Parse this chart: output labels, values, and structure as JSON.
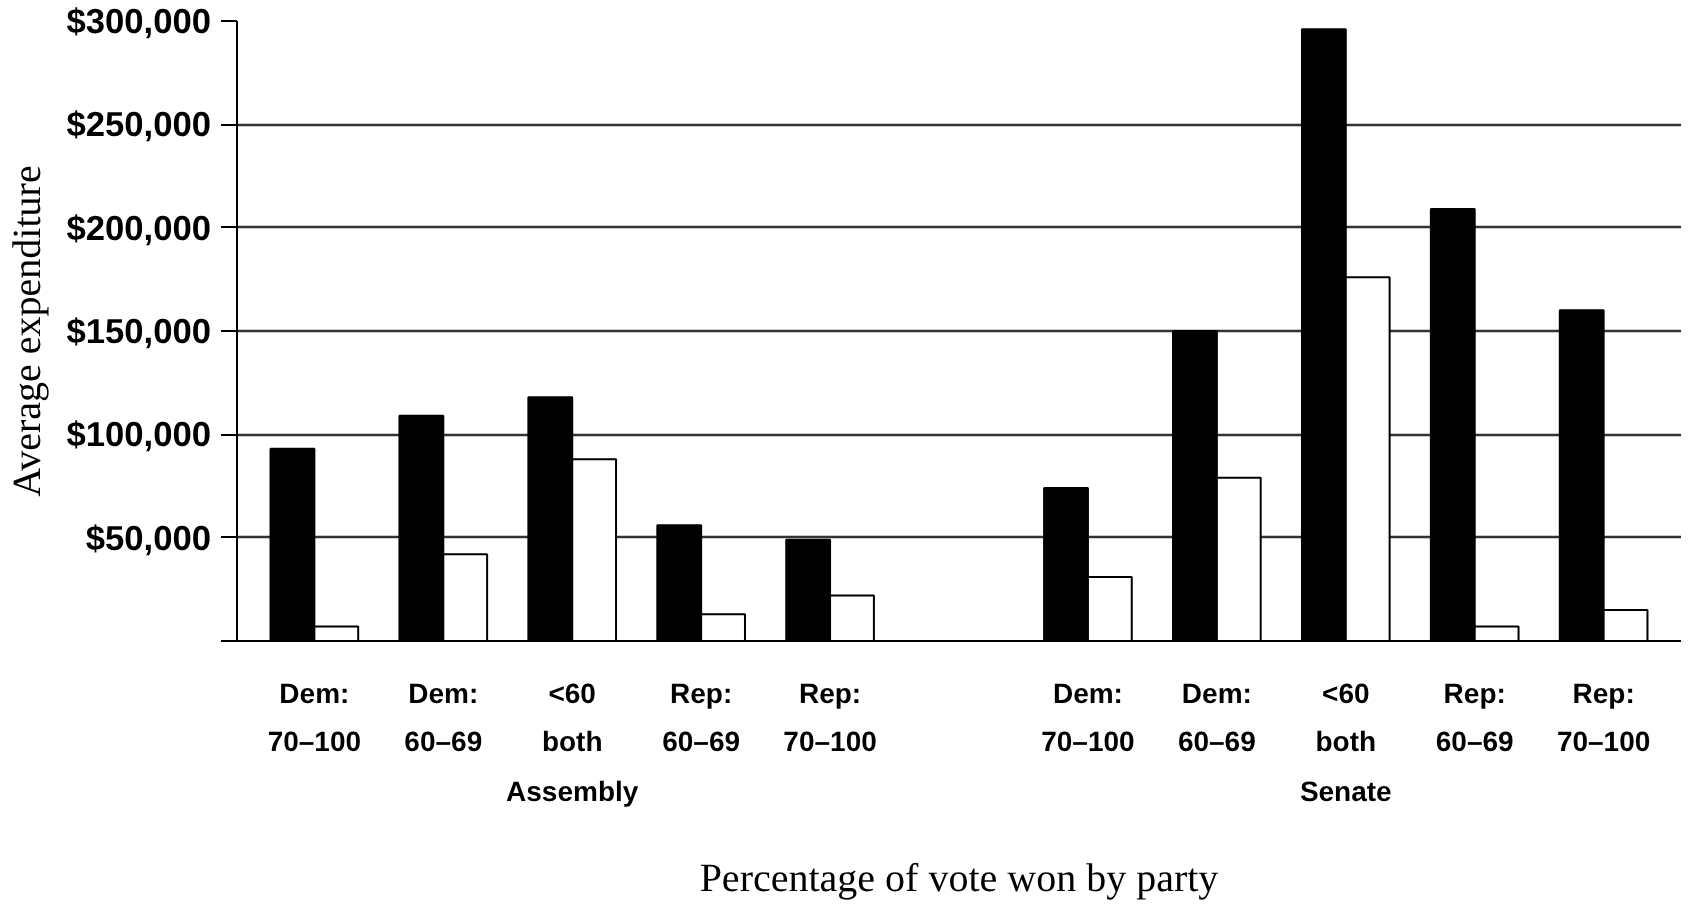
{
  "chart_data": {
    "type": "bar",
    "xlabel": "Percentage of vote won by party",
    "ylabel": "Average expenditure",
    "categories": [
      "Dem:\n70–100",
      "Dem:\n60–69",
      "<60\nboth",
      "Rep:\n60–69",
      "Rep:\n70–100",
      null,
      "Dem:\n70–100",
      "Dem:\n60–69",
      "<60\nboth",
      "Rep:\n60–69",
      "Rep:\n70–100"
    ],
    "series": [
      {
        "color": "#000000",
        "values": [
          93000,
          109000,
          118000,
          56000,
          49000,
          null,
          74000,
          150000,
          296000,
          209000,
          160000
        ]
      },
      {
        "color": "#ffffff",
        "values": [
          7000,
          42000,
          88000,
          13000,
          22000,
          null,
          31000,
          79000,
          176000,
          7000,
          15000
        ]
      }
    ],
    "annotations": [
      "Assembly",
      "Senate"
    ],
    "ylim": [
      0,
      300000
    ],
    "yticks": [
      {
        "value": 0,
        "label": null
      },
      {
        "value": 50000,
        "label": "$50,000"
      },
      {
        "value": 100000,
        "label": "$100,000"
      },
      {
        "value": 150000,
        "label": "$150,000"
      },
      {
        "value": 200000,
        "label": "$200,000"
      },
      {
        "value": 250000,
        "label": "$250,000"
      },
      {
        "value": 300000,
        "label": "$300,000"
      }
    ],
    "grid": "y"
  }
}
